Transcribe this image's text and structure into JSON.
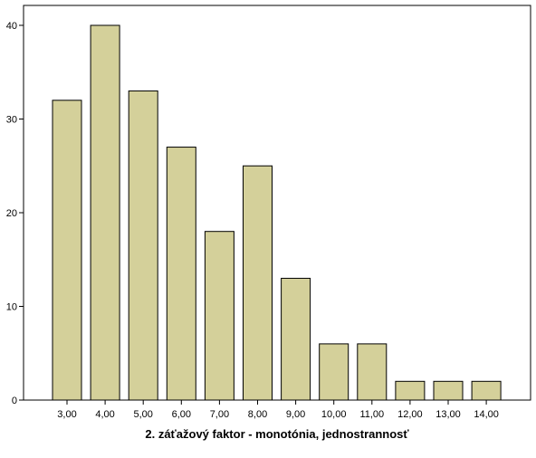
{
  "chart_data": {
    "type": "bar",
    "title": "",
    "xlabel": "2. záťažový faktor - monotónia, jednostrannosť",
    "ylabel": "",
    "categories": [
      "3,00",
      "4,00",
      "5,00",
      "6,00",
      "7,00",
      "8,00",
      "9,00",
      "10,00",
      "11,00",
      "12,00",
      "13,00",
      "14,00"
    ],
    "values": [
      32,
      40,
      33,
      27,
      18,
      25,
      13,
      6,
      6,
      2,
      2,
      2
    ],
    "ylim": [
      0,
      42
    ],
    "yticks": [
      0,
      10,
      20,
      30,
      40
    ],
    "grid": false,
    "legend": "none",
    "bar_color": "#d4d09a",
    "bar_edge_color": "#000000"
  }
}
